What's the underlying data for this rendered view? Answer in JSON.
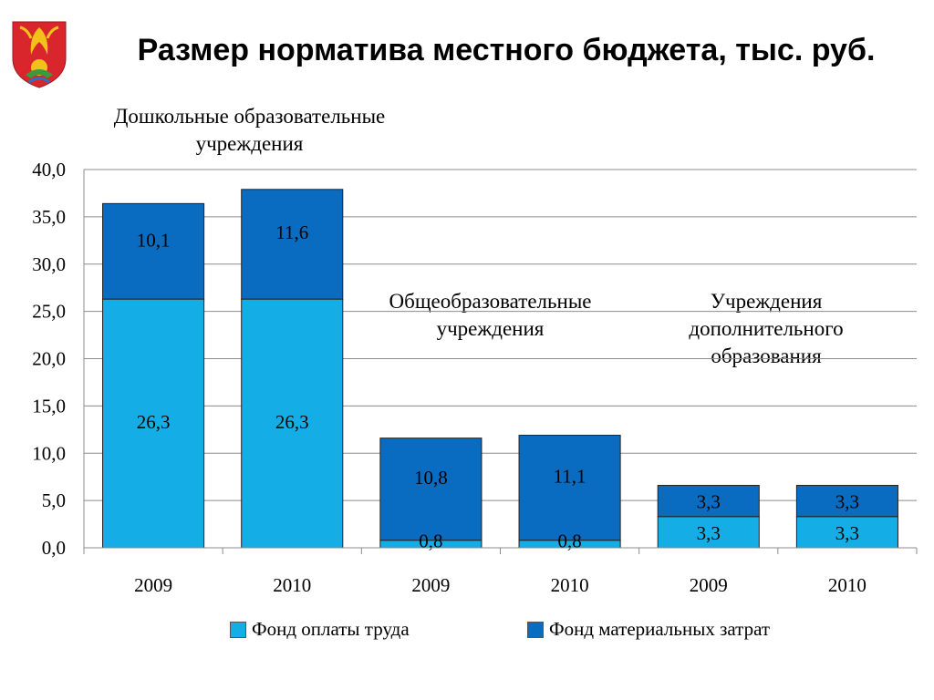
{
  "title": "Размер норматива местного бюджета, тыс. руб.",
  "logo": {
    "icon": "coat-of-arms-icon"
  },
  "colors": {
    "fot": "#14ADE6",
    "fmz": "#0A6CC0",
    "grid": "#8C8C8C"
  },
  "chart_data": {
    "type": "bar",
    "stacked": true,
    "ylim": [
      0,
      40
    ],
    "y_ticks": [
      "0,0",
      "5,0",
      "10,0",
      "15,0",
      "20,0",
      "25,0",
      "30,0",
      "35,0",
      "40,0"
    ],
    "categories": [
      "2009",
      "2010",
      "2009",
      "2010",
      "2009",
      "2010"
    ],
    "groups": [
      "Дошкольные образовательные учреждения",
      "Общеобразовательные учреждения",
      "Учреждения дополнительного образования"
    ],
    "series": [
      {
        "name": "Фонд оплаты труда",
        "values": [
          26.3,
          26.3,
          0.8,
          0.8,
          3.3,
          3.3
        ],
        "labels": [
          "26,3",
          "26,3",
          "0,8",
          "0,8",
          "3,3",
          "3,3"
        ]
      },
      {
        "name": "Фонд материальных затрат",
        "values": [
          10.1,
          11.6,
          10.8,
          11.1,
          3.3,
          3.3
        ],
        "labels": [
          "10,1",
          "11,6",
          "10,8",
          "11,1",
          "3,3",
          "3,3"
        ]
      }
    ],
    "grid": true,
    "legend_position": "bottom"
  }
}
